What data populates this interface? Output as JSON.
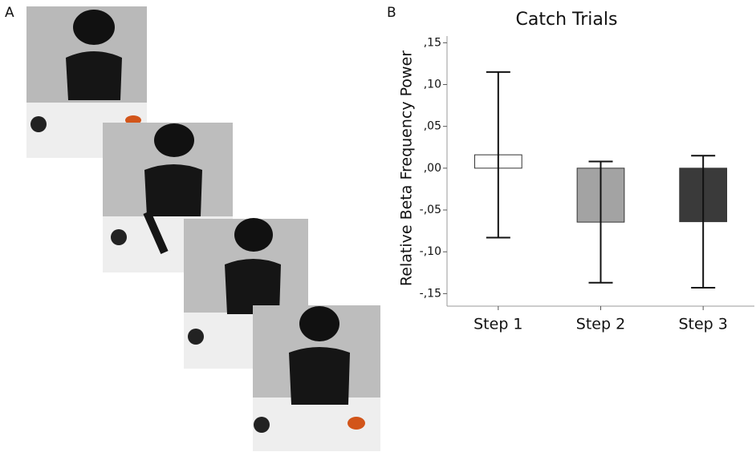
{
  "panel_labels": [
    "A",
    "B"
  ],
  "chart_data": {
    "type": "bar",
    "title": "Catch Trials",
    "y_label": "Relative Beta Frequency Power",
    "categories": [
      "Step 1",
      "Step 2",
      "Step 3"
    ],
    "values": [
      0.016,
      -0.0645,
      -0.064
    ],
    "errors": [
      0.099,
      0.0725,
      0.079
    ],
    "colors": [
      "#ffffff",
      "#a3a3a3",
      "#3a3a3a"
    ],
    "ylim": [
      -0.165,
      0.158
    ],
    "yticks": [
      {
        "value": -0.15,
        "label": "-,15"
      },
      {
        "value": -0.1,
        "label": "-,10"
      },
      {
        "value": -0.05,
        "label": "-,05"
      },
      {
        "value": 0,
        "label": ",00"
      },
      {
        "value": 0.05,
        "label": ",05"
      },
      {
        "value": 0.1,
        "label": ",10"
      },
      {
        "value": 0.15,
        "label": ",15"
      }
    ]
  }
}
